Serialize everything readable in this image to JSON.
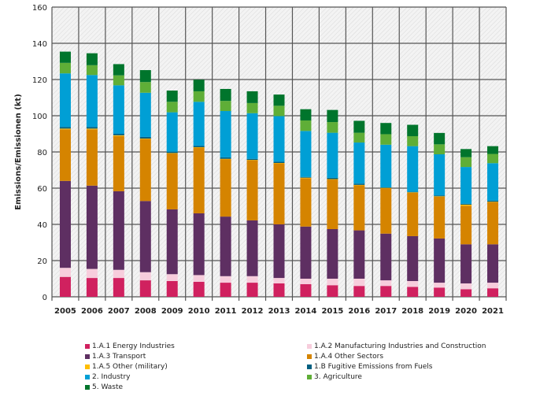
{
  "chart_data": {
    "type": "bar",
    "stacked": true,
    "title": "",
    "xlabel": "",
    "ylabel": "Emissions/Emissionen (kt)",
    "ylim": [
      0,
      160
    ],
    "yticks": [
      0,
      20,
      40,
      60,
      80,
      100,
      120,
      140,
      160
    ],
    "grid": true,
    "legend_position": "bottom",
    "categories": [
      "2005",
      "2006",
      "2007",
      "2008",
      "2009",
      "2010",
      "2011",
      "2012",
      "2013",
      "2014",
      "2015",
      "2016",
      "2017",
      "2018",
      "2019",
      "2020",
      "2021"
    ],
    "series": [
      {
        "name": "1.A.1 Energy Industries",
        "color": "#d0215f",
        "values": [
          11.0,
          10.4,
          10.4,
          9.1,
          8.7,
          8.3,
          7.8,
          7.8,
          7.4,
          7.0,
          6.4,
          6.0,
          6.0,
          5.5,
          5.1,
          4.2,
          4.7
        ]
      },
      {
        "name": "1.A.2 Manufacturing Industries and Construction",
        "color": "#f7cddc",
        "values": [
          5.0,
          5.0,
          4.5,
          4.5,
          3.8,
          3.7,
          3.6,
          3.6,
          3.0,
          3.0,
          3.6,
          4.0,
          3.1,
          3.2,
          2.7,
          3.2,
          3.1
        ]
      },
      {
        "name": "1.A.3 Transport",
        "color": "#5e2f62",
        "values": [
          48.0,
          46.0,
          43.4,
          39.3,
          35.8,
          34.1,
          32.9,
          30.8,
          29.6,
          28.8,
          27.4,
          26.7,
          25.8,
          24.8,
          24.4,
          21.6,
          21.2
        ]
      },
      {
        "name": "1.A.4 Other Sectors",
        "color": "#d58400",
        "values": [
          28.5,
          31.1,
          30.5,
          34.4,
          31.0,
          36.4,
          31.8,
          33.3,
          33.8,
          26.7,
          27.5,
          25.0,
          25.2,
          24.1,
          23.2,
          21.3,
          23.4
        ]
      },
      {
        "name": "1.A.5 Other (military)",
        "color": "#ffbe00",
        "values": [
          0.4,
          0.4,
          0.4,
          0.1,
          0.1,
          0.1,
          0.1,
          0.1,
          0.1,
          0.3,
          0.1,
          0.1,
          0.1,
          0.1,
          0.1,
          0.6,
          0.1
        ]
      },
      {
        "name": "1.B Fugitive Emissions from Fuels",
        "color": "#005f80",
        "values": [
          0.9,
          0.9,
          0.8,
          0.9,
          0.7,
          0.8,
          0.8,
          0.6,
          0.7,
          0.4,
          0.7,
          0.7,
          0.2,
          0.3,
          0.5,
          0.5,
          0.6
        ]
      },
      {
        "name": "2. Industry",
        "color": "#009fd5",
        "values": [
          29.6,
          28.7,
          26.8,
          24.4,
          21.8,
          24.3,
          25.6,
          25.2,
          25.2,
          25.4,
          24.9,
          22.7,
          23.6,
          25.2,
          22.7,
          20.3,
          20.7
        ]
      },
      {
        "name": "3. Agriculture",
        "color": "#5fae37",
        "values": [
          5.8,
          5.4,
          5.5,
          5.9,
          5.8,
          5.8,
          5.6,
          5.6,
          5.7,
          5.8,
          5.9,
          5.4,
          5.8,
          5.5,
          5.5,
          5.4,
          5.1
        ]
      },
      {
        "name": "5. Waste",
        "color": "#00752c",
        "values": [
          6.2,
          6.6,
          6.2,
          6.6,
          6.2,
          6.4,
          6.6,
          6.5,
          6.2,
          6.2,
          6.7,
          6.6,
          6.2,
          6.3,
          6.3,
          4.5,
          4.3
        ]
      }
    ],
    "legend_order": [
      0,
      1,
      2,
      3,
      4,
      5,
      6,
      7,
      8
    ]
  }
}
